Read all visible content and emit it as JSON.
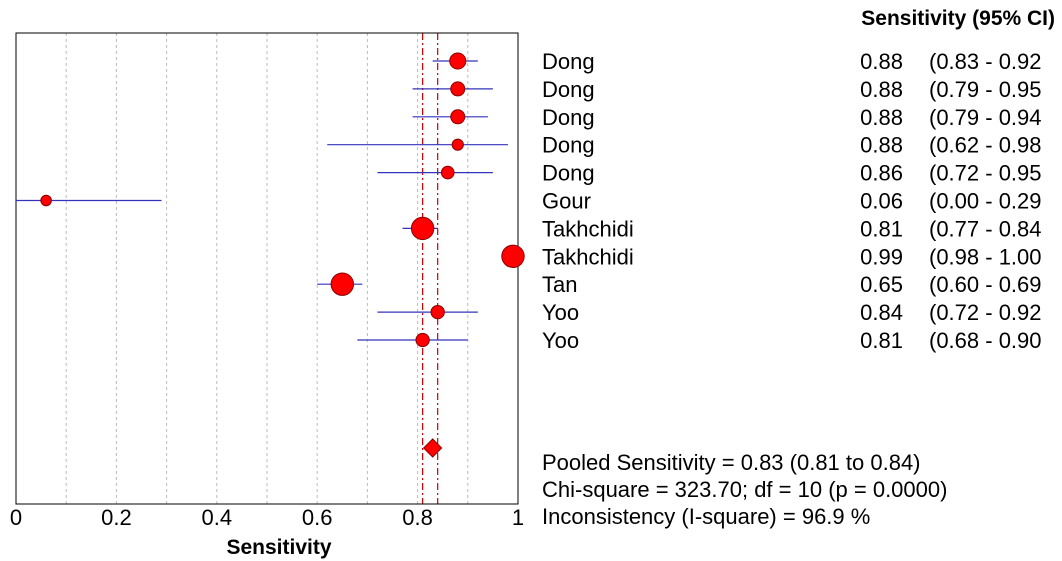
{
  "chart_data": {
    "type": "forest",
    "header": "Sensitivity (95% CI)",
    "xlabel": "Sensitivity",
    "xlim": [
      0,
      1
    ],
    "xticks": [
      "0",
      "0.2",
      "0.4",
      "0.6",
      "0.8",
      "1"
    ],
    "xtick_values": [
      0,
      0.2,
      0.4,
      0.6,
      0.8,
      1
    ],
    "gridlines": [
      0.1,
      0.2,
      0.3,
      0.4,
      0.5,
      0.6,
      0.7,
      0.8,
      0.9
    ],
    "studies": [
      {
        "name": "Dong",
        "estimate": 0.88,
        "lower": 0.83,
        "upper": 0.92,
        "value_text": "0.88",
        "ci_text": "(0.83 - 0.92",
        "weight": 1.15
      },
      {
        "name": "Dong",
        "estimate": 0.88,
        "lower": 0.79,
        "upper": 0.95,
        "value_text": "0.88",
        "ci_text": "(0.79 - 0.95",
        "weight": 1.0
      },
      {
        "name": "Dong",
        "estimate": 0.88,
        "lower": 0.79,
        "upper": 0.94,
        "value_text": "0.88",
        "ci_text": "(0.79 - 0.94",
        "weight": 1.0
      },
      {
        "name": "Dong",
        "estimate": 0.88,
        "lower": 0.62,
        "upper": 0.98,
        "value_text": "0.88",
        "ci_text": "(0.62 - 0.98",
        "weight": 0.8
      },
      {
        "name": "Dong",
        "estimate": 0.86,
        "lower": 0.72,
        "upper": 0.95,
        "value_text": "0.86",
        "ci_text": "(0.72 - 0.95",
        "weight": 0.9
      },
      {
        "name": "Gour",
        "estimate": 0.06,
        "lower": 0.0,
        "upper": 0.29,
        "value_text": "0.06",
        "ci_text": "(0.00 - 0.29",
        "weight": 0.75
      },
      {
        "name": "Takhchidi",
        "estimate": 0.81,
        "lower": 0.77,
        "upper": 0.84,
        "value_text": "0.81",
        "ci_text": "(0.77 - 0.84",
        "weight": 1.6
      },
      {
        "name": "Takhchidi",
        "estimate": 0.99,
        "lower": 0.98,
        "upper": 1.0,
        "value_text": "0.99",
        "ci_text": "(0.98 - 1.00",
        "weight": 1.6
      },
      {
        "name": "Tan",
        "estimate": 0.65,
        "lower": 0.6,
        "upper": 0.69,
        "value_text": "0.65",
        "ci_text": "(0.60 - 0.69",
        "weight": 1.6
      },
      {
        "name": "Yoo",
        "estimate": 0.84,
        "lower": 0.72,
        "upper": 0.92,
        "value_text": "0.84",
        "ci_text": "(0.72 - 0.92",
        "weight": 0.95
      },
      {
        "name": "Yoo",
        "estimate": 0.81,
        "lower": 0.68,
        "upper": 0.9,
        "value_text": "0.81",
        "ci_text": "(0.68 - 0.90",
        "weight": 0.95
      }
    ],
    "pooled": {
      "estimate": 0.83,
      "lower": 0.81,
      "upper": 0.84
    },
    "stats": [
      "Pooled Sensitivity = 0.83 (0.81 to 0.84)",
      "Chi-square = 323.70; df =  10 (p = 0.0000)",
      "Inconsistency (I-square) = 96.9 %"
    ],
    "colors": {
      "marker": "#ff0000",
      "marker_edge": "#8b0000",
      "ci_line": "#3333bb",
      "pooled_line": "#cc0000",
      "grid": "#bbbbbb"
    }
  }
}
